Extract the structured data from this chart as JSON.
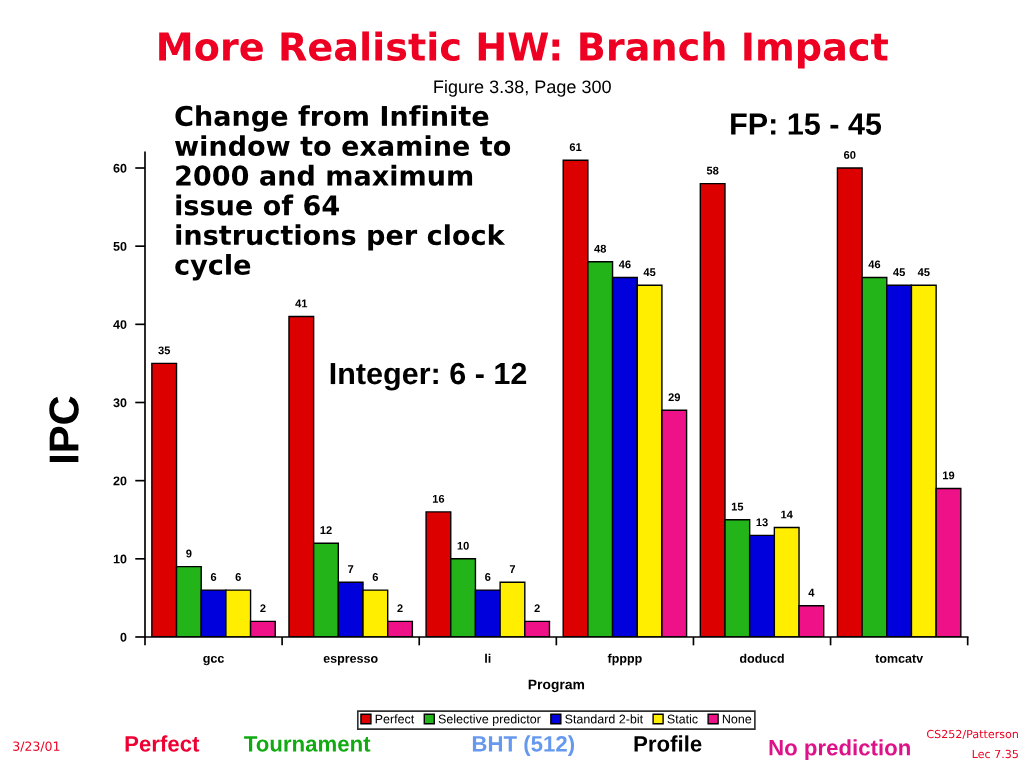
{
  "chart_data": {
    "type": "bar",
    "title": "More Realistic HW: Branch Impact",
    "subtitle": "Figure 3.38, Page 300",
    "xlabel": "Program",
    "ylabel": "IPC",
    "categories": [
      "gcc",
      "espresso",
      "li",
      "fpppp",
      "doducd",
      "tomcatv"
    ],
    "series": [
      {
        "name": "Perfect",
        "color": "#dd0000",
        "values": [
          35,
          41,
          16,
          61,
          58,
          60
        ]
      },
      {
        "name": "Selective predictor",
        "color": "#22b418",
        "values": [
          9,
          12,
          10,
          48,
          15,
          46
        ]
      },
      {
        "name": "Standard 2-bit",
        "color": "#0000dd",
        "values": [
          6,
          7,
          6,
          46,
          13,
          45
        ]
      },
      {
        "name": "Static",
        "color": "#ffee00",
        "values": [
          6,
          6,
          7,
          45,
          14,
          45
        ]
      },
      {
        "name": "None",
        "color": "#ee1188",
        "values": [
          2,
          2,
          2,
          29,
          4,
          19
        ]
      }
    ],
    "ylim": [
      0,
      62
    ],
    "yticks": [
      0,
      10,
      20,
      30,
      40,
      50,
      60
    ],
    "data_labels": true,
    "legend": "bottom",
    "annotations": [
      "Change from Infinite\nwindow to examine to\n2000 and maximum\nissue of 64\ninstructions per clock\ncycle",
      "Integer: 6 - 12",
      "FP: 15 - 45",
      "3/23/01",
      "Perfect",
      "Tournament",
      "BHT (512)",
      "Profile",
      "No prediction",
      "CS252/Patterson",
      "Lec 7.35"
    ]
  }
}
